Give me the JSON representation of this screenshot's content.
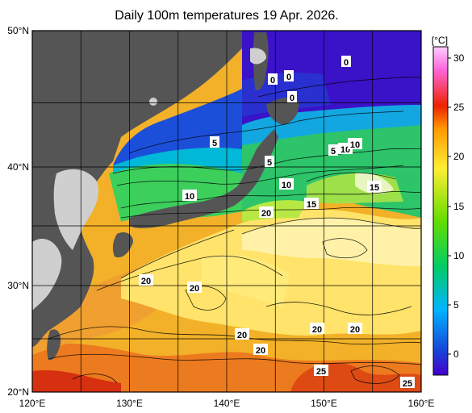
{
  "title": "Daily 100m temperatures 19 Apr. 2026.",
  "map": {
    "lat_labels": [
      "50°N",
      "40°N",
      "30°N",
      "20°N"
    ],
    "lon_labels": [
      "120°E",
      "130°E",
      "140°E",
      "150°E",
      "160°E"
    ],
    "extent": {
      "lon": [
        120,
        160
      ],
      "lat": [
        20,
        50
      ]
    }
  },
  "colorbar": {
    "unit": "[°C]",
    "ticks": [
      "30",
      "25",
      "20",
      "15",
      "10",
      "5",
      "0"
    ],
    "range": [
      -2,
      31
    ],
    "colors": [
      "#4400cc",
      "#1a3fd6",
      "#00b4ff",
      "#00cc66",
      "#66dd00",
      "#ffee33",
      "#ff9900",
      "#ee2200",
      "#ff66dd",
      "#ffccff"
    ]
  },
  "contour_labels": [
    "0",
    "0",
    "0",
    "0",
    "5",
    "5",
    "5",
    "10",
    "10",
    "10",
    "10",
    "15",
    "15",
    "20",
    "20",
    "20",
    "20",
    "20",
    "20",
    "20",
    "25",
    "25"
  ]
}
